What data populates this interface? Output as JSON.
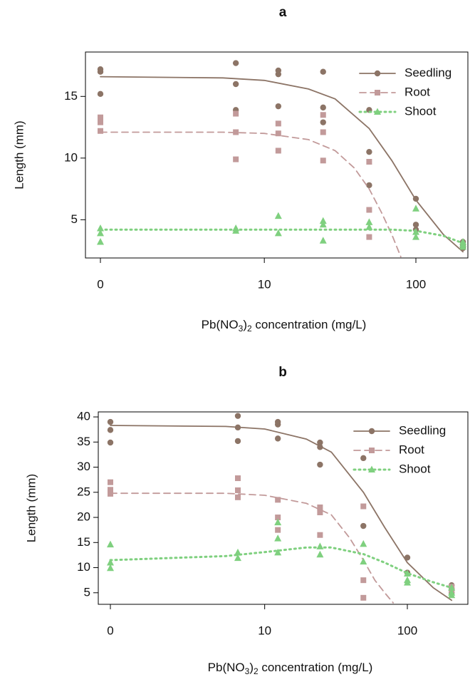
{
  "chart_data": [
    {
      "type": "scatter",
      "title": "a",
      "y_label": "Length (mm)",
      "x_label": [
        "Pb(NO",
        "3",
        ")",
        "2",
        " concentration (mg/L)"
      ],
      "ylim": [
        1.9,
        18.6
      ],
      "yticks": [
        5,
        10,
        15
      ],
      "xlim": [
        0,
        200
      ],
      "xticks": [
        0,
        10,
        100
      ],
      "series": [
        {
          "name": "Seedling",
          "color": "#8c7466",
          "marker": "circle",
          "line": "solid",
          "x": [
            0,
            0,
            0,
            6.25,
            6.25,
            6.25,
            12.5,
            12.5,
            12.5,
            25,
            25,
            25,
            50,
            50,
            50,
            100,
            100,
            100,
            200,
            200,
            200
          ],
          "values": [
            17.2,
            17.0,
            15.2,
            17.7,
            16.0,
            13.9,
            17.1,
            16.8,
            14.2,
            17.0,
            14.1,
            12.9,
            13.9,
            10.5,
            7.8,
            6.7,
            4.6,
            4.2,
            3.2,
            2.9,
            2.7
          ],
          "fit_x": [
            0,
            5,
            10,
            20,
            30,
            50,
            70,
            100,
            150,
            200
          ],
          "fit_values": [
            16.6,
            16.5,
            16.3,
            15.6,
            14.8,
            12.4,
            9.8,
            6.6,
            3.8,
            2.4
          ]
        },
        {
          "name": "Root",
          "color": "#c29a9a",
          "marker": "square",
          "line": "dashed",
          "x": [
            0,
            0,
            0,
            6.25,
            6.25,
            6.25,
            12.5,
            12.5,
            12.5,
            25,
            25,
            25,
            50,
            50,
            50
          ],
          "values": [
            13.3,
            12.9,
            12.2,
            13.6,
            12.1,
            9.9,
            12.8,
            12.0,
            10.6,
            13.5,
            12.1,
            9.8,
            9.7,
            5.8,
            3.6
          ],
          "fit_x": [
            0,
            5,
            10,
            20,
            30,
            40,
            50,
            60,
            70,
            80
          ],
          "fit_values": [
            12.1,
            12.1,
            12.0,
            11.5,
            10.6,
            9.2,
            7.5,
            5.6,
            3.8,
            2.0
          ]
        },
        {
          "name": "Shoot",
          "color": "#7fd07f",
          "marker": "triangle",
          "line": "dotted",
          "x": [
            0,
            0,
            0,
            6.25,
            6.25,
            12.5,
            12.5,
            25,
            25,
            25,
            50,
            50,
            100,
            100,
            100,
            200,
            200,
            200
          ],
          "values": [
            4.3,
            3.9,
            3.2,
            4.3,
            4.1,
            5.3,
            3.9,
            4.9,
            4.6,
            3.3,
            4.8,
            4.4,
            5.9,
            4.0,
            3.6,
            3.2,
            3.0,
            2.8
          ],
          "fit_x": [
            0,
            5,
            10,
            20,
            30,
            50,
            70,
            100,
            150,
            200
          ],
          "fit_values": [
            4.2,
            4.2,
            4.2,
            4.2,
            4.2,
            4.2,
            4.2,
            4.1,
            3.7,
            3.1
          ]
        }
      ]
    },
    {
      "type": "scatter",
      "title": "b",
      "y_label": "Length (mm)",
      "x_label": [
        "Pb(NO",
        "3",
        ")",
        "2",
        " concentration (mg/L)"
      ],
      "ylim": [
        2.7,
        41
      ],
      "yticks": [
        5,
        10,
        15,
        20,
        25,
        30,
        35,
        40
      ],
      "xlim": [
        0,
        200
      ],
      "xticks": [
        0,
        10,
        100
      ],
      "series": [
        {
          "name": "Seedling",
          "color": "#8c7466",
          "marker": "circle",
          "line": "solid",
          "x": [
            0,
            0,
            0,
            6.25,
            6.25,
            6.25,
            12.5,
            12.5,
            12.5,
            25,
            25,
            25,
            50,
            50,
            100,
            100,
            200,
            200,
            200
          ],
          "values": [
            39.0,
            37.4,
            34.9,
            40.2,
            37.9,
            35.2,
            39.0,
            38.5,
            35.7,
            34.9,
            34.0,
            30.5,
            31.8,
            18.3,
            12.0,
            9.0,
            6.5,
            5.8,
            5.0
          ],
          "fit_x": [
            0,
            5,
            10,
            20,
            30,
            50,
            70,
            100,
            150,
            200
          ],
          "fit_values": [
            38.3,
            38.1,
            37.6,
            35.6,
            33.0,
            25.0,
            18.0,
            11.0,
            6.0,
            3.5
          ]
        },
        {
          "name": "Root",
          "color": "#c29a9a",
          "marker": "square",
          "line": "dashed",
          "x": [
            0,
            0,
            0,
            6.25,
            6.25,
            6.25,
            12.5,
            12.5,
            12.5,
            25,
            25,
            25,
            50,
            50,
            50,
            200,
            200
          ],
          "values": [
            27.0,
            25.5,
            24.7,
            27.8,
            25.4,
            24.0,
            23.5,
            20.0,
            17.5,
            22.0,
            21.0,
            16.5,
            22.2,
            7.5,
            4.0,
            6.2,
            5.5
          ],
          "fit_x": [
            0,
            5,
            10,
            20,
            30,
            40,
            50,
            60,
            70,
            80
          ],
          "fit_values": [
            24.8,
            24.8,
            24.4,
            22.8,
            20.5,
            16.0,
            11.5,
            7.5,
            5.0,
            3.0
          ]
        },
        {
          "name": "Shoot",
          "color": "#7fd07f",
          "marker": "triangle",
          "line": "dotted",
          "x": [
            0,
            0,
            0,
            6.25,
            6.25,
            12.5,
            12.5,
            12.5,
            25,
            25,
            50,
            50,
            100,
            100,
            100,
            200,
            200,
            200
          ],
          "values": [
            14.6,
            11.0,
            9.9,
            13.0,
            11.9,
            19.0,
            15.8,
            13.0,
            14.2,
            12.6,
            14.7,
            11.2,
            8.8,
            7.5,
            7.0,
            6.0,
            5.0,
            4.5
          ],
          "fit_x": [
            0,
            5,
            10,
            20,
            30,
            50,
            70,
            100,
            150,
            200
          ],
          "fit_values": [
            11.5,
            12.3,
            13.1,
            14.0,
            14.0,
            12.7,
            11.0,
            8.9,
            7.1,
            6.0
          ]
        }
      ]
    }
  ]
}
